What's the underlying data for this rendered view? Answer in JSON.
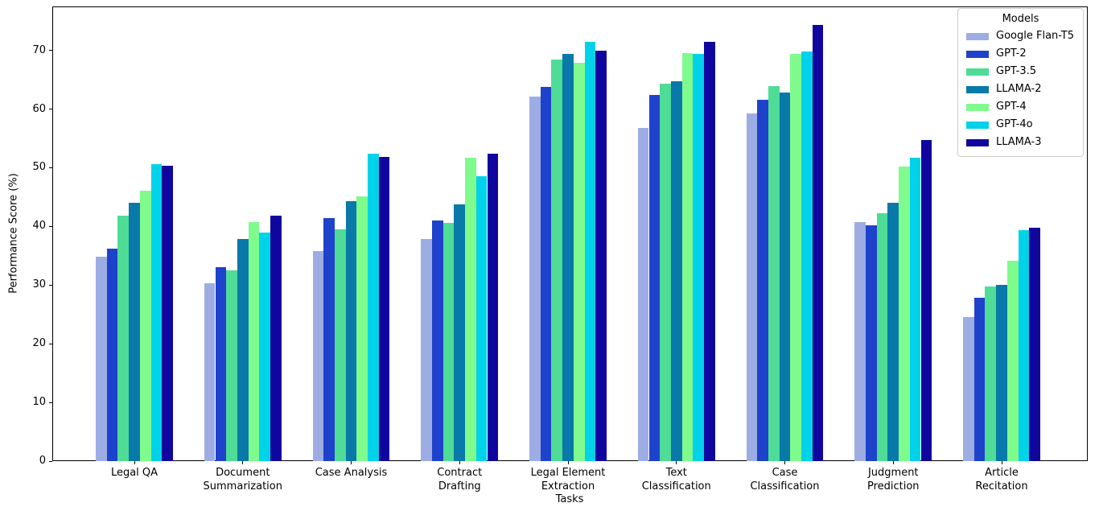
{
  "chart_data": {
    "type": "bar",
    "title": "",
    "xlabel": "Tasks",
    "ylabel": "Performance Score (%)",
    "legend_title": "Models",
    "legend_position": "upper right",
    "grid": false,
    "ylim": [
      0,
      77.5
    ],
    "yticks": [
      0,
      10,
      20,
      30,
      40,
      50,
      60,
      70
    ],
    "categories": [
      "Legal QA",
      "Document\nSummarization",
      "Case Analysis",
      "Contract\nDrafting",
      "Legal Element\nExtraction",
      "Text\nClassification",
      "Case\nClassification",
      "Judgment\nPrediction",
      "Article\nRecitation"
    ],
    "series": [
      {
        "name": "Google Flan-T5",
        "color": "#9dade4",
        "values": [
          34.8,
          30.3,
          35.8,
          37.9,
          62.1,
          56.8,
          59.3,
          40.7,
          24.6
        ]
      },
      {
        "name": "GPT-2",
        "color": "#1e42cb",
        "values": [
          36.2,
          33.1,
          41.4,
          41.0,
          63.8,
          62.4,
          61.6,
          40.2,
          27.9
        ]
      },
      {
        "name": "GPT-3.5",
        "color": "#4fdc96",
        "values": [
          41.9,
          32.5,
          39.5,
          40.6,
          68.5,
          64.3,
          63.9,
          42.2,
          29.7
        ]
      },
      {
        "name": "LLAMA-2",
        "color": "#0879a8",
        "values": [
          44.0,
          37.8,
          44.3,
          43.8,
          69.4,
          64.8,
          62.8,
          44.0,
          30.1
        ]
      },
      {
        "name": "GPT-4",
        "color": "#7ffb8d",
        "values": [
          46.1,
          40.8,
          45.1,
          51.7,
          67.9,
          69.6,
          69.4,
          50.2,
          34.1
        ]
      },
      {
        "name": "GPT-4o",
        "color": "#00d2e9",
        "values": [
          50.6,
          39.0,
          52.4,
          48.5,
          71.5,
          69.4,
          69.8,
          51.7,
          39.4
        ]
      },
      {
        "name": "LLAMA-3",
        "color": "#10069e",
        "values": [
          50.3,
          41.9,
          51.8,
          52.4,
          70.0,
          71.5,
          74.3,
          54.7,
          39.8
        ]
      }
    ]
  }
}
